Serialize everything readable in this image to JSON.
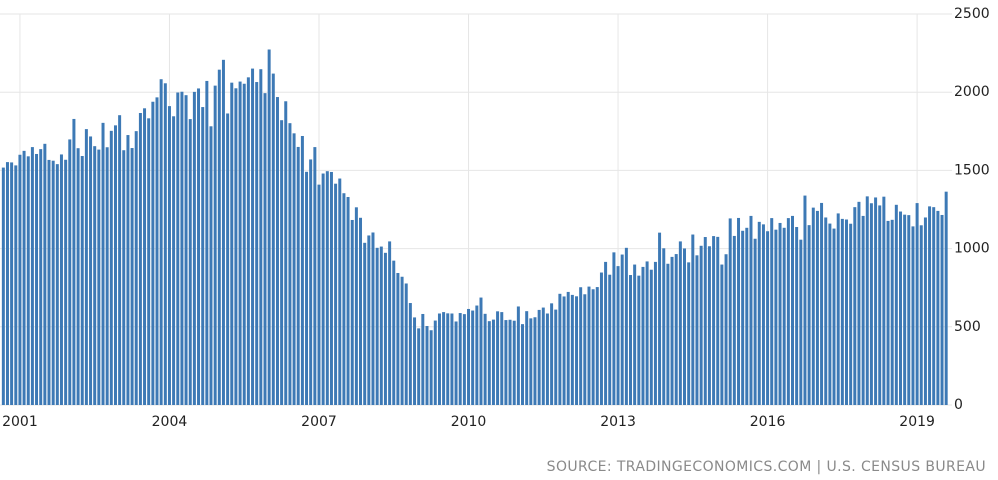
{
  "chart_data": {
    "type": "bar",
    "source": "SOURCE: TRADINGECONOMICS.COM | U.S. CENSUS BUREAU",
    "color": "#3d79b5",
    "grid": true,
    "xlim": [
      2000.6,
      2019.7
    ],
    "xticks": [
      2001,
      2004,
      2007,
      2010,
      2013,
      2016,
      2019
    ],
    "ylim": [
      0,
      2500
    ],
    "yticks": [
      0,
      500,
      1000,
      1500,
      2000,
      2500
    ],
    "x": [
      2000.667,
      2000.75,
      2000.833,
      2000.917,
      2001,
      2001.083,
      2001.167,
      2001.25,
      2001.333,
      2001.417,
      2001.5,
      2001.583,
      2001.667,
      2001.75,
      2001.833,
      2001.917,
      2002,
      2002.083,
      2002.167,
      2002.25,
      2002.333,
      2002.417,
      2002.5,
      2002.583,
      2002.667,
      2002.75,
      2002.833,
      2002.917,
      2003,
      2003.083,
      2003.167,
      2003.25,
      2003.333,
      2003.417,
      2003.5,
      2003.583,
      2003.667,
      2003.75,
      2003.833,
      2003.917,
      2004,
      2004.083,
      2004.167,
      2004.25,
      2004.333,
      2004.417,
      2004.5,
      2004.583,
      2004.667,
      2004.75,
      2004.833,
      2004.917,
      2005,
      2005.083,
      2005.167,
      2005.25,
      2005.333,
      2005.417,
      2005.5,
      2005.583,
      2005.667,
      2005.75,
      2005.833,
      2005.917,
      2006,
      2006.083,
      2006.167,
      2006.25,
      2006.333,
      2006.417,
      2006.5,
      2006.583,
      2006.667,
      2006.75,
      2006.833,
      2006.917,
      2007,
      2007.083,
      2007.167,
      2007.25,
      2007.333,
      2007.417,
      2007.5,
      2007.583,
      2007.667,
      2007.75,
      2007.833,
      2007.917,
      2008,
      2008.083,
      2008.167,
      2008.25,
      2008.333,
      2008.417,
      2008.5,
      2008.583,
      2008.667,
      2008.75,
      2008.833,
      2008.917,
      2009,
      2009.083,
      2009.167,
      2009.25,
      2009.333,
      2009.417,
      2009.5,
      2009.583,
      2009.667,
      2009.75,
      2009.833,
      2009.917,
      2010,
      2010.083,
      2010.167,
      2010.25,
      2010.333,
      2010.417,
      2010.5,
      2010.583,
      2010.667,
      2010.75,
      2010.833,
      2010.917,
      2011,
      2011.083,
      2011.167,
      2011.25,
      2011.333,
      2011.417,
      2011.5,
      2011.583,
      2011.667,
      2011.75,
      2011.833,
      2011.917,
      2012,
      2012.083,
      2012.167,
      2012.25,
      2012.333,
      2012.417,
      2012.5,
      2012.583,
      2012.667,
      2012.75,
      2012.833,
      2012.917,
      2013,
      2013.083,
      2013.167,
      2013.25,
      2013.333,
      2013.417,
      2013.5,
      2013.583,
      2013.667,
      2013.75,
      2013.833,
      2013.917,
      2014,
      2014.083,
      2014.167,
      2014.25,
      2014.333,
      2014.417,
      2014.5,
      2014.583,
      2014.667,
      2014.75,
      2014.833,
      2014.917,
      2015,
      2015.083,
      2015.167,
      2015.25,
      2015.333,
      2015.417,
      2015.5,
      2015.583,
      2015.667,
      2015.75,
      2015.833,
      2015.917,
      2016,
      2016.083,
      2016.167,
      2016.25,
      2016.333,
      2016.417,
      2016.5,
      2016.583,
      2016.667,
      2016.75,
      2016.833,
      2016.917,
      2017,
      2017.083,
      2017.167,
      2017.25,
      2017.333,
      2017.417,
      2017.5,
      2017.583,
      2017.667,
      2017.75,
      2017.833,
      2017.917,
      2018,
      2018.083,
      2018.167,
      2018.25,
      2018.333,
      2018.417,
      2018.5,
      2018.583,
      2018.667,
      2018.75,
      2018.833,
      2018.917,
      2019,
      2019.083,
      2019.167,
      2019.25,
      2019.333,
      2019.417,
      2019.5,
      2019.583
    ],
    "values": [
      1518,
      1553,
      1551,
      1532,
      1600,
      1625,
      1590,
      1649,
      1605,
      1636,
      1670,
      1567,
      1562,
      1540,
      1602,
      1568,
      1698,
      1829,
      1642,
      1592,
      1764,
      1717,
      1655,
      1633,
      1804,
      1648,
      1753,
      1788,
      1853,
      1629,
      1726,
      1643,
      1751,
      1867,
      1897,
      1833,
      1939,
      1967,
      2083,
      2057,
      1911,
      1846,
      1998,
      2003,
      1981,
      1828,
      2002,
      2024,
      1905,
      2072,
      1782,
      2042,
      2144,
      2207,
      1864,
      2061,
      2025,
      2068,
      2054,
      2095,
      2151,
      2065,
      2147,
      1994,
      2273,
      2119,
      1969,
      1821,
      1942,
      1802,
      1737,
      1650,
      1720,
      1491,
      1570,
      1649,
      1409,
      1480,
      1495,
      1490,
      1415,
      1448,
      1354,
      1330,
      1183,
      1264,
      1197,
      1037,
      1084,
      1103,
      1005,
      1013,
      973,
      1046,
      923,
      844,
      820,
      777,
      652,
      560,
      490,
      582,
      505,
      478,
      540,
      585,
      594,
      586,
      585,
      534,
      588,
      581,
      614,
      604,
      636,
      687,
      583,
      536,
      546,
      599,
      594,
      543,
      545,
      539,
      630,
      517,
      600,
      554,
      561,
      608,
      623,
      585,
      650,
      610,
      711,
      694,
      723,
      704,
      695,
      753,
      708,
      757,
      740,
      754,
      847,
      915,
      833,
      976,
      888,
      962,
      1005,
      831,
      898,
      827,
      883,
      918,
      865,
      915,
      1102,
      1002,
      903,
      947,
      965,
      1046,
      1001,
      912,
      1090,
      957,
      1018,
      1074,
      1015,
      1080,
      1075,
      898,
      964,
      1193,
      1081,
      1196,
      1114,
      1133,
      1209,
      1063,
      1171,
      1155,
      1111,
      1195,
      1121,
      1164,
      1133,
      1195,
      1209,
      1138,
      1057,
      1339,
      1150,
      1262,
      1241,
      1292,
      1199,
      1160,
      1128,
      1225,
      1190,
      1186,
      1159,
      1265,
      1299,
      1209,
      1334,
      1290,
      1327,
      1276,
      1332,
      1177,
      1184,
      1280,
      1237,
      1217,
      1214,
      1142,
      1291,
      1149,
      1199,
      1270,
      1265,
      1241,
      1215,
      1364
    ]
  }
}
